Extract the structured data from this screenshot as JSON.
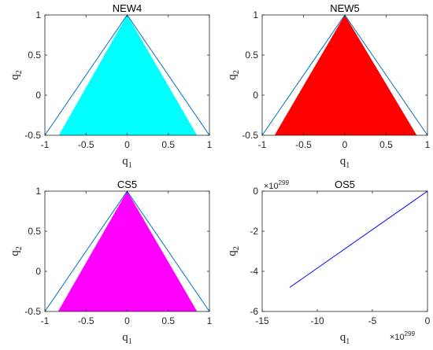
{
  "chart_data": [
    {
      "type": "area",
      "title": "NEW4",
      "xlabel": "q",
      "xlabel_sub": "1",
      "ylabel": "q",
      "ylabel_sub": "2",
      "xlim": [
        -1,
        1
      ],
      "ylim": [
        -0.5,
        1
      ],
      "xticks": [
        -1,
        -0.5,
        0,
        0.5,
        1
      ],
      "xtick_labels": [
        "-1",
        "-0.5",
        "0",
        "0.5",
        "1"
      ],
      "yticks": [
        -0.5,
        0,
        0.5,
        1
      ],
      "ytick_labels": [
        "-0.5",
        "0",
        "0.5",
        "1"
      ],
      "boundary": {
        "color": "#0072bd",
        "x": [
          -1,
          0,
          1
        ],
        "y": [
          -0.5,
          1,
          -0.5
        ]
      },
      "region": {
        "color": "#00ffff",
        "x": [
          -0.83,
          0,
          0.85
        ],
        "y": [
          -0.5,
          1,
          -0.5
        ]
      }
    },
    {
      "type": "area",
      "title": "NEW5",
      "xlabel": "q",
      "xlabel_sub": "1",
      "ylabel": "q",
      "ylabel_sub": "2",
      "xlim": [
        -1,
        1
      ],
      "ylim": [
        -0.5,
        1
      ],
      "xticks": [
        -1,
        -0.5,
        0,
        0.5,
        1
      ],
      "xtick_labels": [
        "-1",
        "-0.5",
        "0",
        "0.5",
        "1"
      ],
      "yticks": [
        -0.5,
        0,
        0.5,
        1
      ],
      "ytick_labels": [
        "-0.5",
        "0",
        "0.5",
        "1"
      ],
      "boundary": {
        "color": "#0072bd",
        "x": [
          -1,
          0,
          1
        ],
        "y": [
          -0.5,
          1,
          -0.5
        ]
      },
      "region": {
        "color": "#ff0000",
        "x": [
          -0.85,
          0,
          0.87
        ],
        "y": [
          -0.5,
          1,
          -0.5
        ]
      }
    },
    {
      "type": "area",
      "title": "CS5",
      "xlabel": "q",
      "xlabel_sub": "1",
      "ylabel": "q",
      "ylabel_sub": "2",
      "xlim": [
        -1,
        1
      ],
      "ylim": [
        -0.5,
        1
      ],
      "xticks": [
        -1,
        -0.5,
        0,
        0.5,
        1
      ],
      "xtick_labels": [
        "-1",
        "-0.5",
        "0",
        "0.5",
        "1"
      ],
      "yticks": [
        -0.5,
        0,
        0.5,
        1
      ],
      "ytick_labels": [
        "-0.5",
        "0",
        "0.5",
        "1"
      ],
      "boundary": {
        "color": "#0072bd",
        "x": [
          -1,
          0,
          1
        ],
        "y": [
          -0.5,
          1,
          -0.5
        ]
      },
      "region": {
        "color": "#ff00ff",
        "x": [
          -0.84,
          0,
          0.85
        ],
        "y": [
          -0.5,
          1,
          -0.5
        ]
      }
    },
    {
      "type": "line",
      "title": "OS5",
      "xlabel": "q",
      "xlabel_sub": "1",
      "ylabel": "q",
      "ylabel_sub": "2",
      "x_exponent": "299",
      "y_exponent": "299",
      "exponent_base": "×10",
      "xlim": [
        -15,
        0
      ],
      "ylim": [
        -6,
        0
      ],
      "xticks": [
        -15,
        -10,
        -5,
        0
      ],
      "xtick_labels": [
        "-15",
        "-10",
        "-5",
        "0"
      ],
      "yticks": [
        -6,
        -4,
        -2,
        0
      ],
      "ytick_labels": [
        "-6",
        "-4",
        "-2",
        "0"
      ],
      "series": [
        {
          "color": "#0000ff",
          "x": [
            -12.5,
            0
          ],
          "y": [
            -4.8,
            0
          ]
        }
      ]
    }
  ]
}
